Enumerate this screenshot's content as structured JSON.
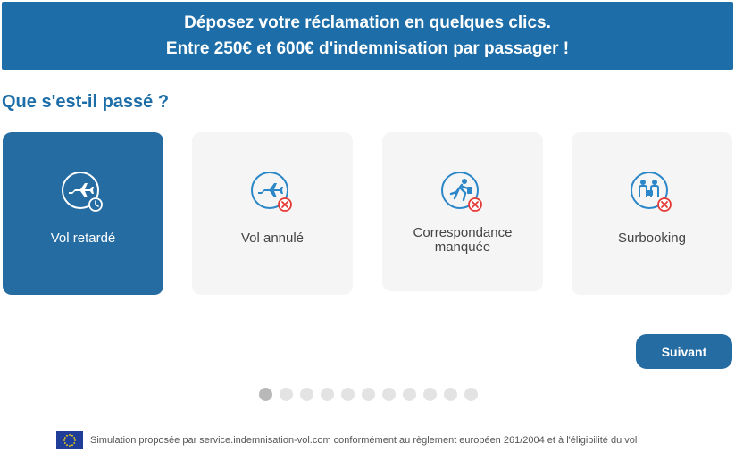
{
  "banner": {
    "line1": "Déposez votre réclamation en quelques clics.",
    "line2": "Entre 250€ et 600€ d'indemnisation par passager !"
  },
  "question": "Que s'est-il passé ?",
  "options": [
    {
      "label": "Vol retardé",
      "icon": "delayed-flight-icon",
      "selected": true
    },
    {
      "label": "Vol annulé",
      "icon": "cancelled-flight-icon",
      "selected": false
    },
    {
      "label_line1": "Correspondance",
      "label_line2": "manquée",
      "icon": "missed-connection-icon",
      "selected": false
    },
    {
      "label": "Surbooking",
      "icon": "overbooking-icon",
      "selected": false
    }
  ],
  "next_button": "Suivant",
  "pagination": {
    "total": 11,
    "current": 1
  },
  "footer": {
    "text": "Simulation proposée par service.indemnisation-vol.com conformément au règlement européen 261/2004 et à l'éligibilité du vol",
    "flag_icon": "eu-flag-icon"
  },
  "colors": {
    "primary": "#1d6ea8",
    "selected_card": "#256ca3",
    "card_bg": "#f5f5f5",
    "error_red": "#e53935"
  }
}
